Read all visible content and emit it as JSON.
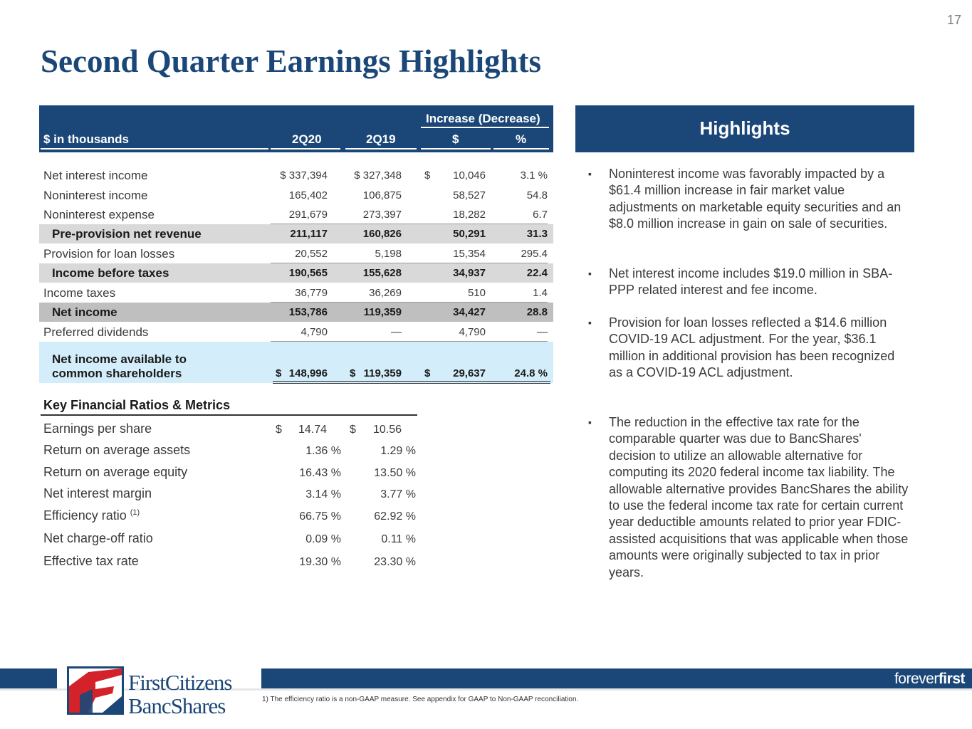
{
  "page_number": "17",
  "title": "Second Quarter Earnings Highlights",
  "table": {
    "header": {
      "label": "$ in thousands",
      "col_2q20": "2Q20",
      "col_2q19": "2Q19",
      "group": "Increase (Decrease)",
      "col_dollar": "$",
      "col_pct": "%"
    },
    "rows": [
      {
        "label": "Net interest income",
        "a": "$ 337,394",
        "b": "$ 327,348",
        "c": "10,046",
        "d": "3.1 %",
        "c_sign": "$"
      },
      {
        "label": "Noninterest income",
        "a": "165,402",
        "b": "106,875",
        "c": "58,527",
        "d": "54.8"
      },
      {
        "label": "Noninterest expense",
        "a": "291,679",
        "b": "273,397",
        "c": "18,282",
        "d": "6.7"
      },
      {
        "label": "Pre-provision net revenue",
        "a": "211,117",
        "b": "160,826",
        "c": "50,291",
        "d": "31.3"
      },
      {
        "label": "Provision for loan losses",
        "a": "20,552",
        "b": "5,198",
        "c": "15,354",
        "d": "295.4"
      },
      {
        "label": "Income before taxes",
        "a": "190,565",
        "b": "155,628",
        "c": "34,937",
        "d": "22.4"
      },
      {
        "label": "Income taxes",
        "a": "36,779",
        "b": "36,269",
        "c": "510",
        "d": "1.4"
      },
      {
        "label": "Net income",
        "a": "153,786",
        "b": "119,359",
        "c": "34,427",
        "d": "28.8"
      },
      {
        "label": "Preferred dividends",
        "a": "4,790",
        "b": "—",
        "c": "4,790",
        "d": "—"
      },
      {
        "label_line1": "Net income available to",
        "label_line2": "common shareholders",
        "a": "148,996",
        "b": "119,359",
        "c": "29,637",
        "d": "24.8 %",
        "a_sign": "$",
        "b_sign": "$",
        "c_sign": "$"
      }
    ]
  },
  "metrics": {
    "title": "Key Financial Ratios & Metrics",
    "rows": [
      {
        "label": "Earnings per share",
        "a": "14.74",
        "b": "10.56",
        "a_sign": "$",
        "b_sign": "$"
      },
      {
        "label": "Return on average assets",
        "a": "1.36 %",
        "b": "1.29 %"
      },
      {
        "label": "Return on average equity",
        "a": "16.43 %",
        "b": "13.50 %"
      },
      {
        "label": "Net interest margin",
        "a": "3.14 %",
        "b": "3.77 %"
      },
      {
        "label": "Efficiency ratio",
        "sup": "(1)",
        "a": "66.75 %",
        "b": "62.92 %"
      },
      {
        "label": "Net charge-off ratio",
        "a": "0.09 %",
        "b": "0.11 %"
      },
      {
        "label": "Effective tax rate",
        "a": "19.30 %",
        "b": "23.30 %"
      }
    ]
  },
  "highlights": {
    "title": "Highlights",
    "bullet_mark": "▪",
    "bullets": [
      "Noninterest income was favorably impacted by a $61.4 million increase in fair market value adjustments on marketable equity securities and an $8.0 million increase in gain on sale of securities.",
      "Net interest income includes $19.0 million in SBA-PPP related interest and fee income.",
      "Provision for loan losses reflected a $14.6 million COVID-19 ACL adjustment.  For the year, $36.1 million in additional provision has been recognized as a COVID-19 ACL adjustment.",
      "The reduction in the effective tax rate for the comparable quarter was due to BancShares' decision to utilize an allowable alternative for computing its 2020 federal income tax liability. The allowable alternative provides BancShares the ability to use the federal income tax rate for certain current year deductible amounts related to prior year FDIC-assisted acquisitions that was applicable when those amounts were originally subjected to tax in prior years."
    ]
  },
  "footer": {
    "logo_line1": "FirstCitizens",
    "logo_line2": "BancShares",
    "tagline_a": "forever",
    "tagline_b": "first",
    "footnote": "1) The efficiency ratio is a non-GAAP measure.  See appendix for GAAP to Non-GAAP reconciliation.",
    "brand_color": "#1b4778",
    "accent_color": "#d3222a"
  }
}
